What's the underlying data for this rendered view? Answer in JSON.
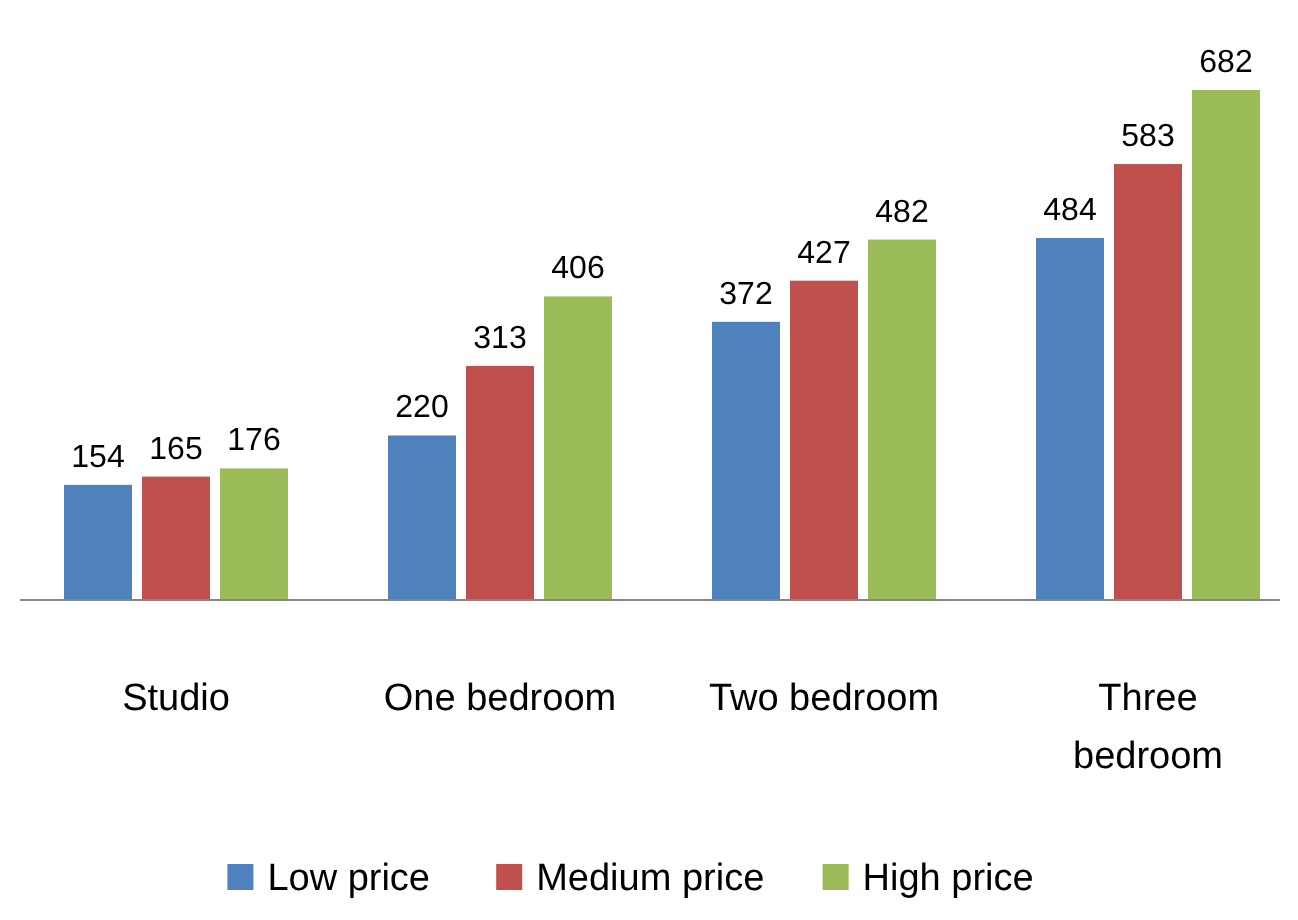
{
  "chart_data": {
    "type": "bar",
    "categories": [
      "Studio",
      "One bedroom",
      "Two bedroom",
      "Three bedroom"
    ],
    "series": [
      {
        "name": "Low price",
        "color": "#4f81bd",
        "values": [
          154,
          220,
          372,
          484
        ]
      },
      {
        "name": "Medium price",
        "color": "#c0504d",
        "values": [
          165,
          313,
          427,
          583
        ]
      },
      {
        "name": "High price",
        "color": "#9bbb59",
        "values": [
          176,
          406,
          482,
          682
        ]
      }
    ],
    "data_labels": true,
    "legend": "bottom"
  }
}
